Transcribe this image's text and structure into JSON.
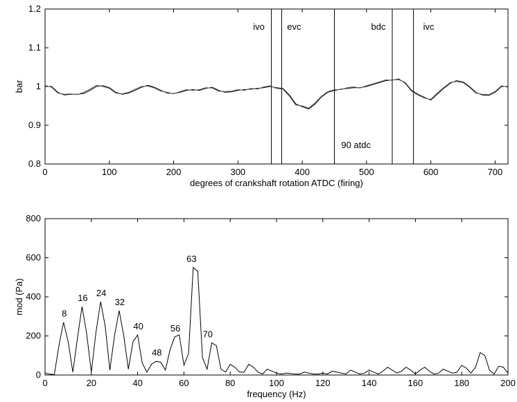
{
  "chart_data": [
    {
      "type": "line",
      "title": "",
      "xlabel": "degrees of crankshaft rotation ATDC (firing)",
      "ylabel": "bar",
      "xlim": [
        0,
        720
      ],
      "ylim": [
        0.8,
        1.2
      ],
      "xticks": [
        "0",
        "100",
        "200",
        "300",
        "400",
        "500",
        "600",
        "700"
      ],
      "yticks": [
        "0.8",
        "0.9",
        "1",
        "1.1",
        "1.2"
      ],
      "grid": false,
      "series": [
        {
          "x": [
            0,
            10,
            20,
            30,
            40,
            50,
            60,
            70,
            80,
            90,
            100,
            110,
            120,
            130,
            140,
            150,
            160,
            170,
            180,
            190,
            200,
            210,
            220,
            230,
            240,
            250,
            260,
            270,
            280,
            290,
            300,
            310,
            320,
            330,
            340,
            350,
            360,
            370,
            380,
            390,
            400,
            410,
            420,
            430,
            440,
            450,
            460,
            470,
            480,
            490,
            500,
            510,
            520,
            530,
            540,
            550,
            560,
            570,
            580,
            590,
            600,
            610,
            620,
            630,
            640,
            650,
            660,
            670,
            680,
            690,
            700,
            710,
            720
          ],
          "y": [
            1.0,
            1.0,
            0.985,
            0.978,
            0.98,
            0.98,
            0.982,
            0.99,
            1.0,
            1.002,
            0.997,
            0.985,
            0.98,
            0.983,
            0.99,
            0.998,
            1.003,
            0.998,
            0.99,
            0.983,
            0.982,
            0.985,
            0.99,
            0.992,
            0.99,
            0.995,
            0.998,
            0.99,
            0.985,
            0.986,
            0.99,
            0.992,
            0.993,
            0.995,
            0.997,
            1.0,
            0.997,
            0.995,
            0.978,
            0.955,
            0.948,
            0.942,
            0.955,
            0.973,
            0.985,
            0.99,
            0.993,
            0.995,
            0.997,
            0.997,
            1.0,
            1.005,
            1.01,
            1.015,
            1.017,
            1.018,
            1.01,
            0.99,
            0.98,
            0.972,
            0.965,
            0.98,
            0.995,
            1.008,
            1.015,
            1.012,
            1.0,
            0.985,
            0.978,
            0.977,
            0.985,
            1.0,
            1.0
          ]
        },
        {
          "x": [
            0,
            10,
            20,
            30,
            40,
            50,
            60,
            70,
            80,
            90,
            100,
            110,
            120,
            130,
            140,
            150,
            160,
            170,
            180,
            190,
            200,
            210,
            220,
            230,
            240,
            250,
            260,
            270,
            280,
            290,
            300,
            310,
            320,
            330,
            340,
            350,
            360,
            370,
            380,
            390,
            400,
            410,
            420,
            430,
            440,
            450,
            460,
            470,
            480,
            490,
            500,
            510,
            520,
            530,
            540,
            550,
            560,
            570,
            580,
            590,
            600,
            610,
            620,
            630,
            640,
            650,
            660,
            670,
            680,
            690,
            700,
            710,
            720
          ],
          "y": [
            1.003,
            0.998,
            0.983,
            0.98,
            0.981,
            0.979,
            0.985,
            0.993,
            1.003,
            1.0,
            0.995,
            0.983,
            0.981,
            0.985,
            0.993,
            1.0,
            1.001,
            0.996,
            0.988,
            0.985,
            0.981,
            0.987,
            0.992,
            0.99,
            0.992,
            0.997,
            0.996,
            0.988,
            0.987,
            0.988,
            0.992,
            0.99,
            0.995,
            0.993,
            0.999,
            1.002,
            0.995,
            0.993,
            0.975,
            0.952,
            0.95,
            0.944,
            0.958,
            0.975,
            0.987,
            0.992,
            0.992,
            0.997,
            0.999,
            0.996,
            1.002,
            1.007,
            1.012,
            1.017,
            1.016,
            1.02,
            1.008,
            0.988,
            0.978,
            0.97,
            0.967,
            0.983,
            0.997,
            1.01,
            1.013,
            1.01,
            0.998,
            0.983,
            0.98,
            0.979,
            0.987,
            1.002,
            0.998
          ]
        }
      ],
      "vlines": [
        {
          "x": 352,
          "label": "ivo"
        },
        {
          "x": 368,
          "label": "evc"
        },
        {
          "x": 450,
          "label": ""
        },
        {
          "x": 540,
          "label": "bdc"
        },
        {
          "x": 573,
          "label": "ivc"
        }
      ],
      "annotations": [
        {
          "text": "90 atdc",
          "x": 452,
          "y": 0.848
        }
      ]
    },
    {
      "type": "line",
      "title": "",
      "xlabel": "frequency (Hz)",
      "ylabel": "mod (Pa)",
      "xlim": [
        0,
        200
      ],
      "ylim": [
        0,
        800
      ],
      "xticks": [
        "0",
        "20",
        "40",
        "60",
        "80",
        "100",
        "120",
        "140",
        "160",
        "180",
        "200"
      ],
      "yticks": [
        "0",
        "200",
        "400",
        "600",
        "800"
      ],
      "grid": false,
      "series": [
        {
          "x": [
            0,
            2,
            4,
            6,
            8,
            10,
            12,
            14,
            16,
            18,
            20,
            22,
            24,
            26,
            28,
            30,
            32,
            34,
            36,
            38,
            40,
            42,
            44,
            46,
            48,
            50,
            52,
            54,
            56,
            58,
            60,
            62,
            64,
            66,
            68,
            70,
            72,
            74,
            76,
            78,
            80,
            82,
            84,
            86,
            88,
            90,
            92,
            94,
            96,
            98,
            100,
            102,
            104,
            106,
            108,
            110,
            112,
            114,
            116,
            118,
            120,
            122,
            124,
            126,
            128,
            130,
            132,
            134,
            136,
            138,
            140,
            142,
            144,
            146,
            148,
            150,
            152,
            154,
            156,
            158,
            160,
            162,
            164,
            166,
            168,
            170,
            172,
            174,
            176,
            178,
            180,
            182,
            184,
            186,
            188,
            190,
            192,
            194,
            196,
            198,
            200
          ],
          "y": [
            10,
            5,
            2,
            150,
            270,
            170,
            15,
            190,
            350,
            210,
            15,
            220,
            375,
            250,
            25,
            200,
            330,
            200,
            30,
            170,
            205,
            60,
            15,
            55,
            70,
            65,
            25,
            130,
            195,
            205,
            50,
            110,
            550,
            530,
            90,
            30,
            165,
            150,
            30,
            15,
            55,
            40,
            15,
            15,
            55,
            40,
            15,
            5,
            30,
            20,
            10,
            5,
            10,
            8,
            5,
            5,
            15,
            10,
            5,
            5,
            10,
            5,
            20,
            15,
            10,
            5,
            25,
            15,
            5,
            10,
            25,
            15,
            5,
            20,
            40,
            25,
            10,
            20,
            40,
            25,
            5,
            25,
            40,
            20,
            5,
            10,
            30,
            20,
            10,
            15,
            50,
            35,
            10,
            40,
            115,
            100,
            25,
            5,
            45,
            40,
            10
          ]
        }
      ],
      "peak_labels": [
        {
          "x": 8,
          "y": 270,
          "label": "8"
        },
        {
          "x": 16,
          "y": 350,
          "label": "16"
        },
        {
          "x": 24,
          "y": 375,
          "label": "24"
        },
        {
          "x": 32,
          "y": 330,
          "label": "32"
        },
        {
          "x": 40,
          "y": 205,
          "label": "40"
        },
        {
          "x": 48,
          "y": 70,
          "label": "48"
        },
        {
          "x": 56,
          "y": 195,
          "label": "56"
        },
        {
          "x": 63,
          "y": 550,
          "label": "63"
        },
        {
          "x": 70,
          "y": 165,
          "label": "70"
        }
      ]
    }
  ]
}
